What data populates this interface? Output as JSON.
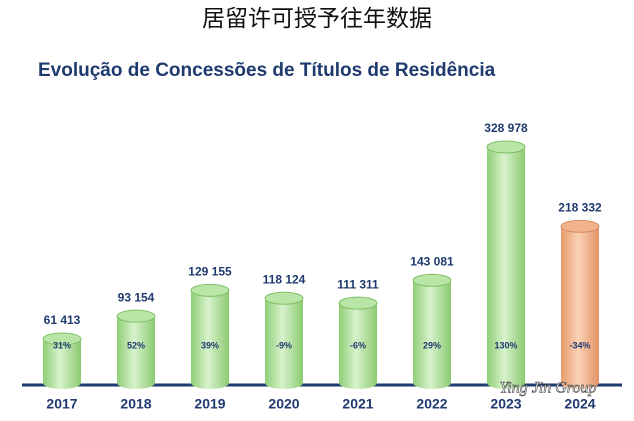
{
  "chart_data": {
    "type": "bar",
    "title": "居留许可授予往年数据",
    "subtitle": "Evolução de Concessões de Títulos de Residência",
    "categories": [
      "2017",
      "2018",
      "2019",
      "2020",
      "2021",
      "2022",
      "2023",
      "2024"
    ],
    "values": [
      61413,
      93154,
      129155,
      118124,
      111311,
      143081,
      328978,
      218332
    ],
    "value_labels": [
      "61 413",
      "93 154",
      "129 155",
      "118 124",
      "111 311",
      "143 081",
      "328 978",
      "218 332"
    ],
    "growth_labels": [
      "31%",
      "52%",
      "39%",
      "-9%",
      "-6%",
      "29%",
      "130%",
      "-34%"
    ],
    "colors": [
      "#b9e6a6",
      "#b9e6a6",
      "#b9e6a6",
      "#b9e6a6",
      "#b9e6a6",
      "#b9e6a6",
      "#b9e6a6",
      "#f2b48c"
    ],
    "watermark": "Ying Jin Group"
  }
}
